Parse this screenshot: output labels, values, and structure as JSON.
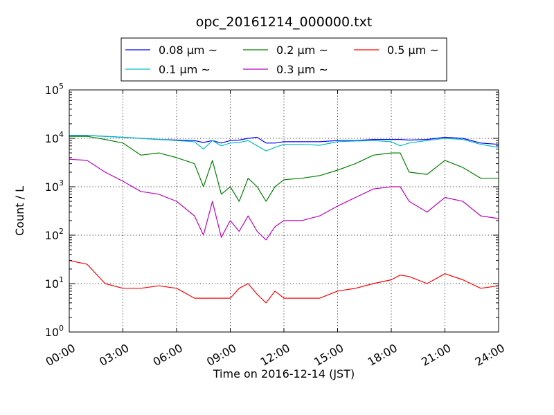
{
  "chart_data": {
    "type": "line",
    "title": "opc_20161214_000000.txt",
    "xlabel": "Time on 2016-12-14 (JST)",
    "ylabel": "Count / L",
    "yscale": "log",
    "ylim": [
      1,
      100000
    ],
    "xlim": [
      "00:00",
      "24:00"
    ],
    "grid": true,
    "legend_position": "top",
    "x_ticks": [
      "00:00",
      "03:00",
      "06:00",
      "09:00",
      "12:00",
      "15:00",
      "18:00",
      "21:00",
      "24:00"
    ],
    "y_ticks": [
      {
        "value": 1,
        "base": "10",
        "exp": "0"
      },
      {
        "value": 10,
        "base": "10",
        "exp": "1"
      },
      {
        "value": 100,
        "base": "10",
        "exp": "2"
      },
      {
        "value": 1000,
        "base": "10",
        "exp": "3"
      },
      {
        "value": 10000,
        "base": "10",
        "exp": "4"
      },
      {
        "value": 100000,
        "base": "10",
        "exp": "5"
      }
    ],
    "x": [
      "00:00",
      "01:00",
      "02:00",
      "03:00",
      "04:00",
      "05:00",
      "06:00",
      "07:00",
      "07:30",
      "08:00",
      "08:30",
      "09:00",
      "09:30",
      "10:00",
      "10:30",
      "11:00",
      "11:30",
      "12:00",
      "13:00",
      "14:00",
      "15:00",
      "16:00",
      "17:00",
      "18:00",
      "18:30",
      "19:00",
      "20:00",
      "21:00",
      "22:00",
      "23:00",
      "24:00"
    ],
    "series": [
      {
        "name": "0.08 μm ~",
        "color": "#0000ff",
        "values": [
          11500,
          11500,
          11000,
          10500,
          10000,
          9500,
          9200,
          9000,
          8200,
          9000,
          8000,
          9000,
          9200,
          10000,
          10500,
          8000,
          8000,
          8500,
          8500,
          8500,
          9000,
          9000,
          9500,
          9500,
          9500,
          9200,
          9500,
          10500,
          10000,
          8000,
          7500
        ]
      },
      {
        "name": "0.1 μm ~",
        "color": "#00bfbf",
        "values": [
          11500,
          11500,
          11000,
          10500,
          10000,
          9500,
          9000,
          8500,
          6000,
          9000,
          7000,
          8000,
          8200,
          9000,
          7000,
          5500,
          6500,
          7500,
          7500,
          7200,
          8500,
          8800,
          9000,
          8500,
          7000,
          8000,
          9000,
          10000,
          9500,
          7500,
          6500
        ]
      },
      {
        "name": "0.2 μm ~",
        "color": "#008000",
        "values": [
          11000,
          11000,
          9500,
          8000,
          4500,
          5000,
          4000,
          3000,
          1000,
          3500,
          700,
          1000,
          500,
          1500,
          1000,
          500,
          1000,
          1400,
          1500,
          1700,
          2200,
          3000,
          4500,
          5000,
          5000,
          2000,
          1800,
          3500,
          2500,
          1500,
          1500
        ]
      },
      {
        "name": "0.3 μm ~",
        "color": "#bf00bf",
        "values": [
          3700,
          3500,
          2000,
          1300,
          800,
          700,
          500,
          250,
          100,
          500,
          90,
          200,
          120,
          250,
          120,
          80,
          150,
          200,
          200,
          250,
          400,
          600,
          900,
          1000,
          1000,
          500,
          300,
          600,
          500,
          250,
          220
        ]
      },
      {
        "name": "0.5 μm ~",
        "color": "#ff0000",
        "values": [
          30,
          25,
          10,
          8,
          8,
          9,
          8,
          5,
          5,
          5,
          5,
          5,
          8,
          10,
          6,
          4,
          7,
          5,
          5,
          5,
          7,
          8,
          10,
          12,
          15,
          14,
          10,
          16,
          12,
          8,
          9
        ]
      }
    ]
  }
}
